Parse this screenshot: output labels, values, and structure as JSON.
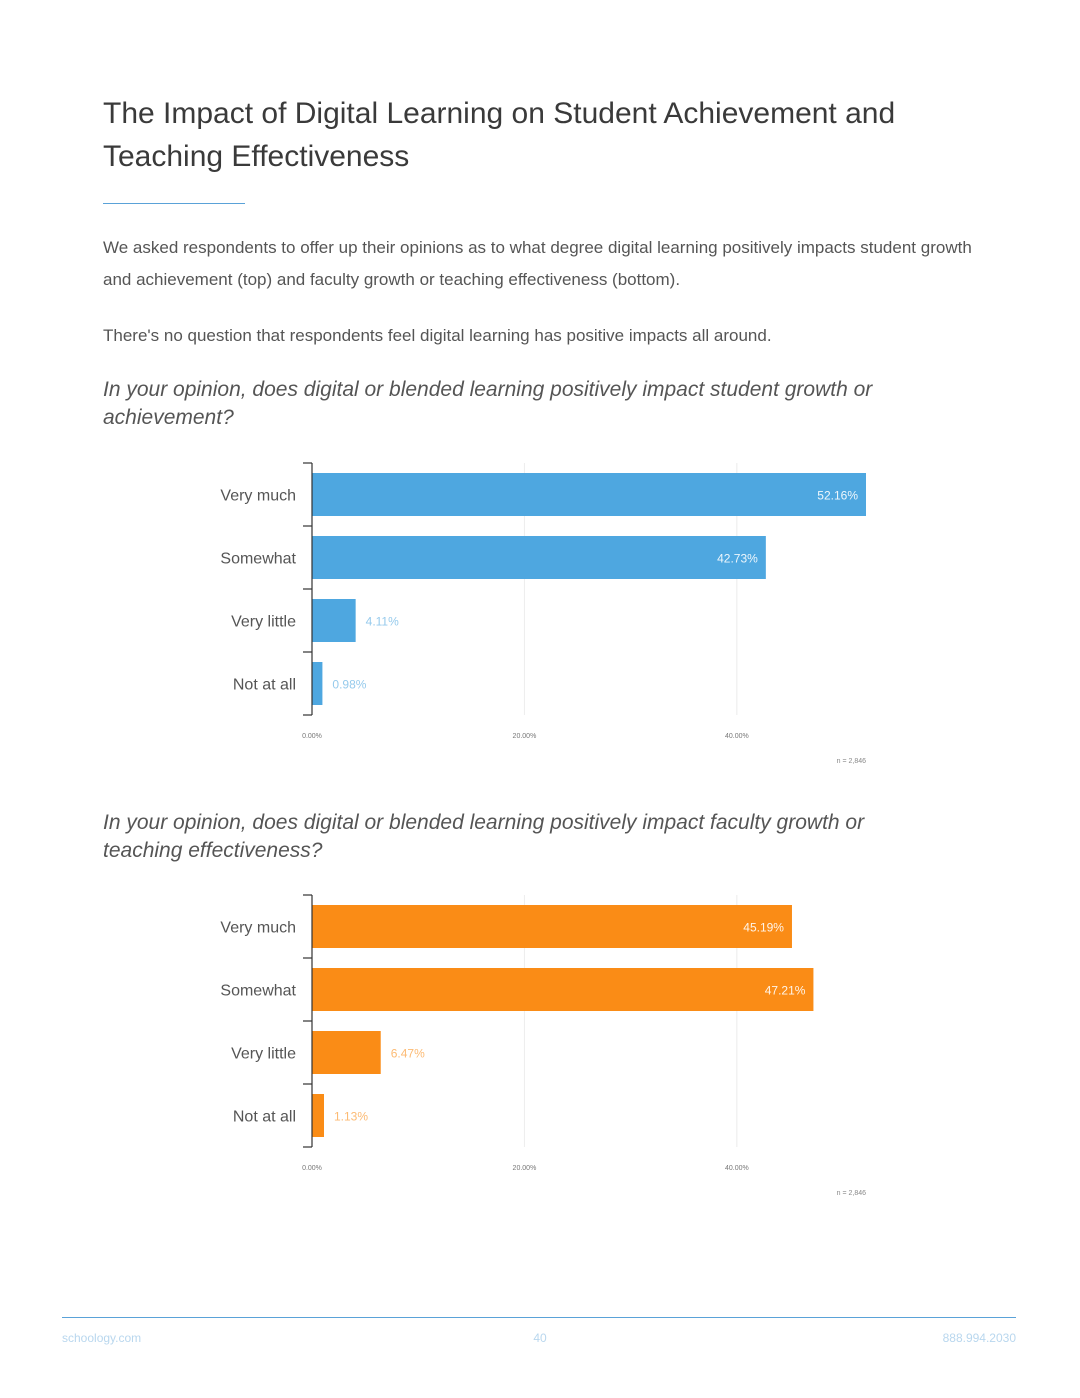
{
  "page": {
    "title": "The Impact of Digital Learning on Student Achievement and Teaching Effectiveness",
    "intro_p1": "We asked respondents to offer up their opinions as to what degree digital learning positively impacts student growth and achievement (top) and faculty growth or teaching effectiveness (bottom).",
    "intro_p2": "There's no question that respondents feel digital learning has positive impacts all around."
  },
  "footer": {
    "left": "schoology.com",
    "page_number": "40",
    "right": "888.994.2030"
  },
  "colors": {
    "accent": "#5aa2d8",
    "blue_bar": "#4ea7e0",
    "orange_bar": "#fa8c16"
  },
  "chart_data": [
    {
      "type": "bar",
      "orientation": "horizontal",
      "title": "In your opinion, does digital or blended learning positively impact student growth or achievement?",
      "categories": [
        "Very much",
        "Somewhat",
        "Very little",
        "Not at all"
      ],
      "values": [
        52.16,
        42.73,
        4.11,
        0.98
      ],
      "value_labels": [
        "52.16%",
        "42.73%",
        "4.11%",
        "0.98%"
      ],
      "xticks": [
        "0.00%",
        "20.00%",
        "40.00%"
      ],
      "xlim": [
        0,
        52.16
      ],
      "grid": true,
      "color": "#4ea7e0",
      "note": "n = 2,846"
    },
    {
      "type": "bar",
      "orientation": "horizontal",
      "title": "In your opinion, does digital or blended learning positively impact faculty growth or teaching effectiveness?",
      "categories": [
        "Very much",
        "Somewhat",
        "Very little",
        "Not at all"
      ],
      "values": [
        45.19,
        47.21,
        6.47,
        1.13
      ],
      "value_labels": [
        "45.19%",
        "47.21%",
        "6.47%",
        "1.13%"
      ],
      "xticks": [
        "0.00%",
        "20.00%",
        "40.00%"
      ],
      "xlim": [
        0,
        52.16
      ],
      "grid": true,
      "color": "#fa8c16",
      "note": "n = 2,846"
    }
  ]
}
